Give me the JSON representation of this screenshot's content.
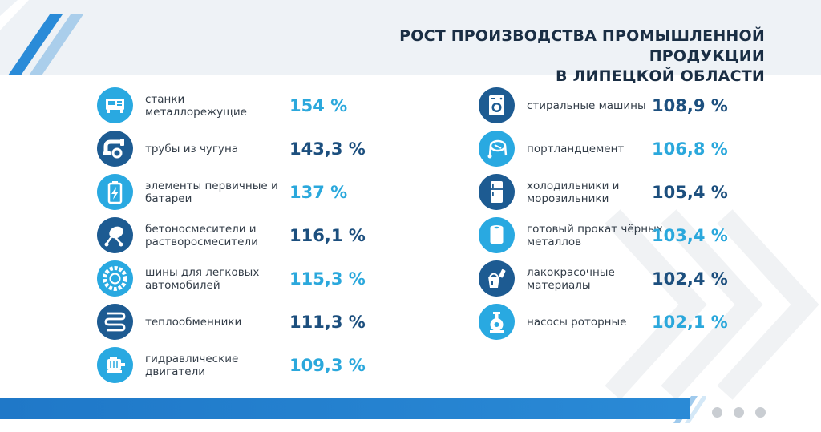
{
  "header": {
    "title_line1": "РОСТ ПРОИЗВОДСТВА ПРОМЫШЛЕННОЙ ПРОДУКЦИИ",
    "title_line2": "В ЛИПЕЦКОЙ ОБЛАСТИ"
  },
  "colors": {
    "light_blue": "#29a9e1",
    "dark_blue": "#1d5b92",
    "title": "#1a2e44",
    "footer": "#1f78c8"
  },
  "left_items": [
    {
      "label": "станки металлорежущие",
      "value": "154 %",
      "icon": "machine-tool-icon",
      "tone": "light"
    },
    {
      "label": "трубы из чугуна",
      "value": "143,3 %",
      "icon": "pipe-icon",
      "tone": "dark"
    },
    {
      "label": "элементы первичные и батареи",
      "value": "137 %",
      "icon": "battery-icon",
      "tone": "light"
    },
    {
      "label": "бетоносмесители и растворосмесители",
      "value": "116,1 %",
      "icon": "concrete-mixer-icon",
      "tone": "dark"
    },
    {
      "label": "шины для легковых автомобилей",
      "value": "115,3 %",
      "icon": "tire-icon",
      "tone": "light"
    },
    {
      "label": "теплообменники",
      "value": "111,3 %",
      "icon": "heat-exchanger-icon",
      "tone": "dark"
    },
    {
      "label": "гидравлические двигатели",
      "value": "109,3 %",
      "icon": "hydraulic-motor-icon",
      "tone": "light"
    }
  ],
  "right_items": [
    {
      "label": "стиральные машины",
      "value": "108,9 %",
      "icon": "washing-machine-icon",
      "tone": "dark"
    },
    {
      "label": "портландцемент",
      "value": "106,8 %",
      "icon": "cement-icon",
      "tone": "light"
    },
    {
      "label": "холодильники и морозильники",
      "value": "105,4 %",
      "icon": "refrigerator-icon",
      "tone": "dark"
    },
    {
      "label": "готовый прокат чёрных металлов",
      "value": "103,4 %",
      "icon": "rolled-metal-icon",
      "tone": "light"
    },
    {
      "label": "лакокрасочные материалы",
      "value": "102,4 %",
      "icon": "paint-bucket-icon",
      "tone": "dark"
    },
    {
      "label": "насосы роторные",
      "value": "102,1 %",
      "icon": "pump-icon",
      "tone": "light"
    }
  ]
}
